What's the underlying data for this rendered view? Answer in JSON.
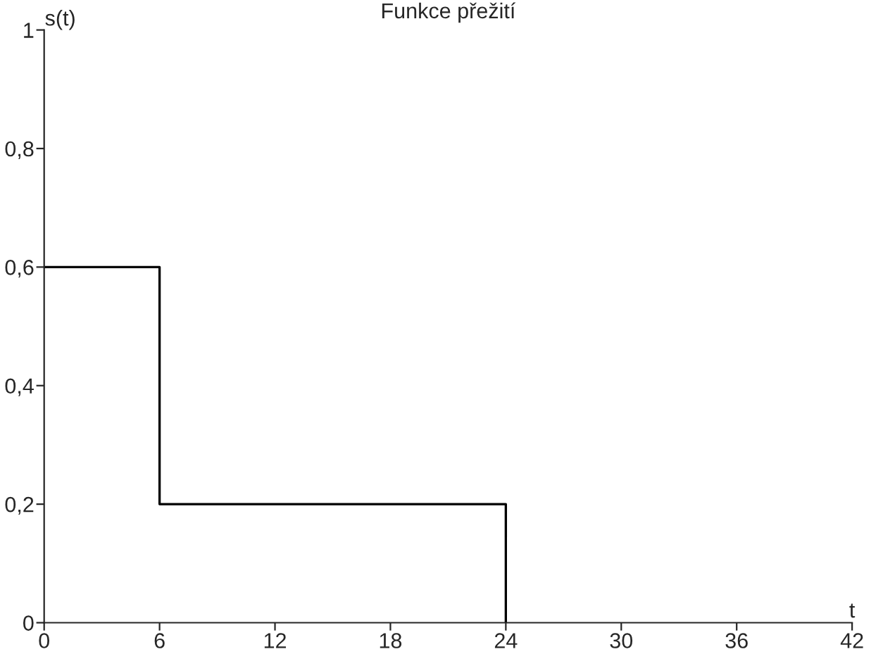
{
  "chart_data": {
    "type": "step",
    "title": "Funkce přežití",
    "xlabel": "t",
    "ylabel": "s(t)",
    "x": [
      0,
      6,
      24
    ],
    "series": [
      {
        "color": "#000000",
        "values": [
          0.6,
          0.2,
          0
        ]
      }
    ],
    "xlim": [
      0,
      42
    ],
    "xticks": [
      0,
      6,
      12,
      18,
      24,
      30,
      36,
      42
    ],
    "ylim": [
      0,
      1
    ],
    "yticks": [
      0,
      {
        "value": 0.2,
        "label": "0,2"
      },
      {
        "value": 0.4,
        "label": "0,4"
      },
      {
        "value": 0.6,
        "label": "0,6"
      },
      {
        "value": 0.8,
        "label": "0,8"
      },
      1
    ],
    "grid": false,
    "legend": false
  }
}
